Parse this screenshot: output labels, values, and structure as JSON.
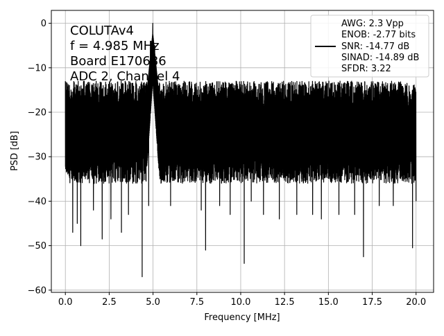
{
  "chart_data": {
    "type": "line",
    "xlabel": "Frequency [MHz]",
    "ylabel": "PSD [dB]",
    "xlim": [
      -0.8,
      21.0
    ],
    "ylim": [
      -60.5,
      2.9
    ],
    "x_ticks": [
      0.0,
      2.5,
      5.0,
      7.5,
      10.0,
      12.5,
      15.0,
      17.5,
      20.0
    ],
    "x_tick_labels": [
      "0.0",
      "2.5",
      "5.0",
      "7.5",
      "10.0",
      "12.5",
      "15.0",
      "17.5",
      "20.0"
    ],
    "y_ticks": [
      0,
      -10,
      -20,
      -30,
      -40,
      -50,
      -60
    ],
    "y_tick_labels": [
      "0",
      "−10",
      "−20",
      "−30",
      "−40",
      "−50",
      "−60"
    ],
    "grid": true,
    "line_color": "#000000",
    "annotation_lines": [
      "COLUTAv4",
      "f = 4.985 MHz",
      "Board E170686",
      "ADC 2, Channel 4"
    ],
    "legend": {
      "placement": "top-right",
      "lines": [
        "AWG: 2.3 Vpp",
        "ENOB: -2.77 bits",
        "SNR: -14.77 dB",
        "SINAD: -14.89 dB",
        "SFDR: 3.22"
      ]
    },
    "series": [
      {
        "style": "noisy spectrum",
        "x_range": [
          0.0,
          20.0
        ],
        "band_top_db": -16,
        "band_bottom_db": -33,
        "peak": {
          "x": 4.985,
          "y": 0.0
        },
        "upper_spikes": [
          {
            "x": 0.0,
            "y": -13
          },
          {
            "x": 0.12,
            "y": -15
          },
          {
            "x": 0.95,
            "y": -15
          },
          {
            "x": 2.55,
            "y": -15
          },
          {
            "x": 4.75,
            "y": -8
          },
          {
            "x": 4.85,
            "y": -4
          },
          {
            "x": 5.1,
            "y": -5
          },
          {
            "x": 5.25,
            "y": -12
          },
          {
            "x": 7.55,
            "y": -15
          },
          {
            "x": 10.5,
            "y": -16
          },
          {
            "x": 13.3,
            "y": -15
          },
          {
            "x": 17.3,
            "y": -15
          },
          {
            "x": 20.0,
            "y": -16
          }
        ],
        "lower_spikes": [
          {
            "x": 0.42,
            "y": -47
          },
          {
            "x": 0.68,
            "y": -45
          },
          {
            "x": 0.88,
            "y": -50
          },
          {
            "x": 1.6,
            "y": -42
          },
          {
            "x": 2.1,
            "y": -48.5
          },
          {
            "x": 2.6,
            "y": -44
          },
          {
            "x": 3.2,
            "y": -47
          },
          {
            "x": 3.6,
            "y": -43
          },
          {
            "x": 4.38,
            "y": -57
          },
          {
            "x": 4.75,
            "y": -41
          },
          {
            "x": 6.0,
            "y": -41
          },
          {
            "x": 7.75,
            "y": -42
          },
          {
            "x": 8.0,
            "y": -51
          },
          {
            "x": 8.8,
            "y": -41
          },
          {
            "x": 9.4,
            "y": -43
          },
          {
            "x": 10.2,
            "y": -54
          },
          {
            "x": 10.6,
            "y": -40
          },
          {
            "x": 11.3,
            "y": -43
          },
          {
            "x": 12.2,
            "y": -44
          },
          {
            "x": 13.2,
            "y": -43
          },
          {
            "x": 14.1,
            "y": -43
          },
          {
            "x": 14.6,
            "y": -44
          },
          {
            "x": 15.6,
            "y": -43
          },
          {
            "x": 16.5,
            "y": -43
          },
          {
            "x": 17.0,
            "y": -52.5
          },
          {
            "x": 17.9,
            "y": -41
          },
          {
            "x": 18.7,
            "y": -41
          },
          {
            "x": 19.8,
            "y": -50.5
          },
          {
            "x": 20.0,
            "y": -40
          }
        ]
      }
    ]
  }
}
